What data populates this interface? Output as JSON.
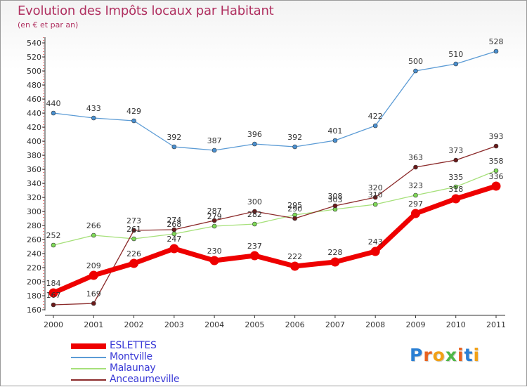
{
  "title": "Evolution des Impôts locaux par Habitant",
  "subtitle": "(en € et par an)",
  "chart_data": {
    "type": "line",
    "title": "Evolution des Impôts locaux par Habitant",
    "subtitle": "(en € et par an)",
    "xlabel": "",
    "ylabel": "",
    "x": [
      "2000",
      "2001",
      "2002",
      "2003",
      "2004",
      "2005",
      "2006",
      "2007",
      "2008",
      "2009",
      "2010",
      "2011"
    ],
    "ylim": [
      160,
      540
    ],
    "ytick_step": 20,
    "grid": false,
    "legend_position": "bottom-left",
    "series": [
      {
        "name": "ESLETTES",
        "color": "#ee0000",
        "marker_color": "#ee0000",
        "values": [
          184,
          209,
          226,
          247,
          230,
          237,
          222,
          228,
          243,
          297,
          318,
          336
        ]
      },
      {
        "name": "Montville",
        "color": "#5b9bd5",
        "marker_color": "#4a90d0",
        "values": [
          440,
          433,
          429,
          392,
          387,
          396,
          392,
          401,
          422,
          500,
          510,
          528
        ]
      },
      {
        "name": "Malaunay",
        "color": "#a6e07a",
        "marker_color": "#7ed957",
        "values": [
          252,
          266,
          261,
          268,
          279,
          282,
          295,
          303,
          310,
          323,
          335,
          358
        ]
      },
      {
        "name": "Anceaumeville",
        "color": "#8b2a2a",
        "marker_color": "#6b1a1a",
        "values": [
          167,
          169,
          273,
          274,
          287,
          300,
          290,
          308,
          320,
          363,
          373,
          393
        ]
      }
    ]
  },
  "logo": {
    "letters": [
      "P",
      "r",
      "o",
      "x",
      "i",
      "t",
      "i"
    ],
    "colors": [
      "#2a7fd4",
      "#e8621f",
      "#f2a116",
      "#4fb848",
      "#e8621f",
      "#2a7fd4",
      "#f2a116"
    ]
  }
}
